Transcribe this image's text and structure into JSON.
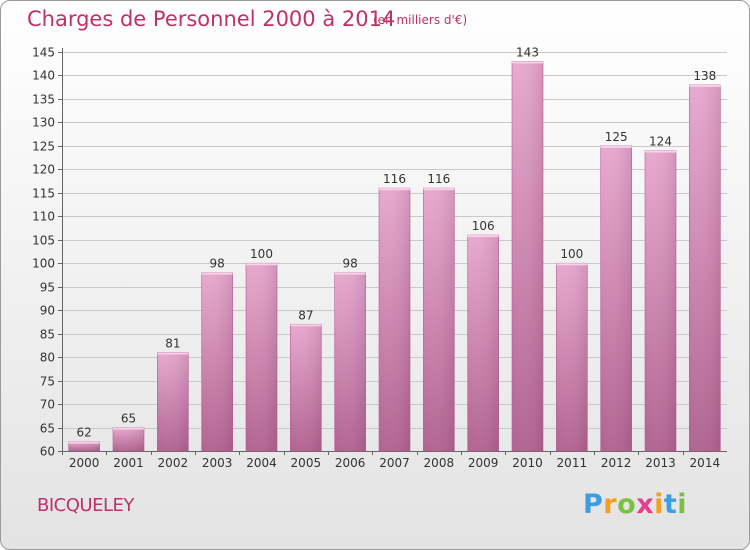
{
  "title": "Charges de Personnel 2000 à 2014",
  "subtitle": "(en milliers d'€)",
  "town": "BICQUELEY",
  "brand": {
    "letters": [
      "P",
      "r",
      "o",
      "x",
      "i",
      "t",
      "i"
    ],
    "colors": [
      "#3b9ee0",
      "#f3a020",
      "#7ac143",
      "#e83c8c",
      "#f3a020",
      "#3b9ee0",
      "#7ac143"
    ]
  },
  "colors": {
    "bar_top": "#e8a8cf",
    "bar_bottom": "#b0628f",
    "title": "#c0306b"
  },
  "chart_data": {
    "type": "bar",
    "categories": [
      "2000",
      "2001",
      "2002",
      "2003",
      "2004",
      "2005",
      "2006",
      "2007",
      "2008",
      "2009",
      "2010",
      "2011",
      "2012",
      "2013",
      "2014"
    ],
    "values": [
      62,
      65,
      81,
      98,
      100,
      87,
      98,
      116,
      116,
      106,
      143,
      100,
      125,
      124,
      138
    ],
    "ylim": [
      60,
      145
    ],
    "yticks": [
      60,
      65,
      70,
      75,
      80,
      85,
      90,
      95,
      100,
      105,
      110,
      115,
      120,
      125,
      130,
      135,
      140,
      145
    ],
    "grid": true
  }
}
